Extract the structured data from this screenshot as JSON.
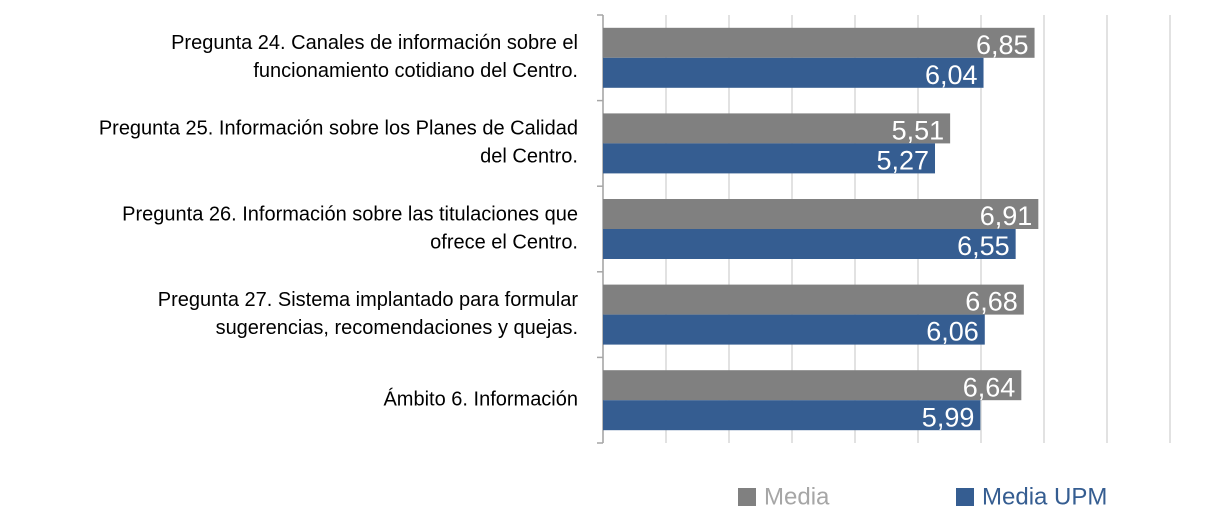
{
  "chart_data": {
    "type": "bar",
    "orientation": "horizontal",
    "categories": [
      [
        "Pregunta 24. Canales de información sobre el",
        "funcionamiento cotidiano del Centro."
      ],
      [
        "Pregunta 25. Información sobre los Planes de Calidad",
        "del Centro."
      ],
      [
        "Pregunta 26. Información sobre las titulaciones que",
        "ofrece el Centro."
      ],
      [
        "Pregunta 27. Sistema implantado para formular",
        "sugerencias, recomendaciones y quejas."
      ],
      [
        "Ámbito 6. Información"
      ]
    ],
    "series": [
      {
        "name": "Media",
        "color": "#808080",
        "values": [
          6.85,
          5.51,
          6.91,
          6.68,
          6.64
        ],
        "value_labels": [
          "6,85",
          "5,51",
          "6,91",
          "6,68",
          "6,64"
        ]
      },
      {
        "name": "Media UPM",
        "color": "#355d91",
        "values": [
          6.04,
          5.27,
          6.55,
          6.06,
          5.99
        ],
        "value_labels": [
          "6,04",
          "5,27",
          "6,55",
          "6,06",
          "5,99"
        ]
      }
    ],
    "xlim": [
      0,
      9
    ],
    "xticks": [
      0,
      1,
      2,
      3,
      4,
      5,
      6,
      7,
      8,
      9
    ],
    "grid": true,
    "legend": "bottom"
  }
}
